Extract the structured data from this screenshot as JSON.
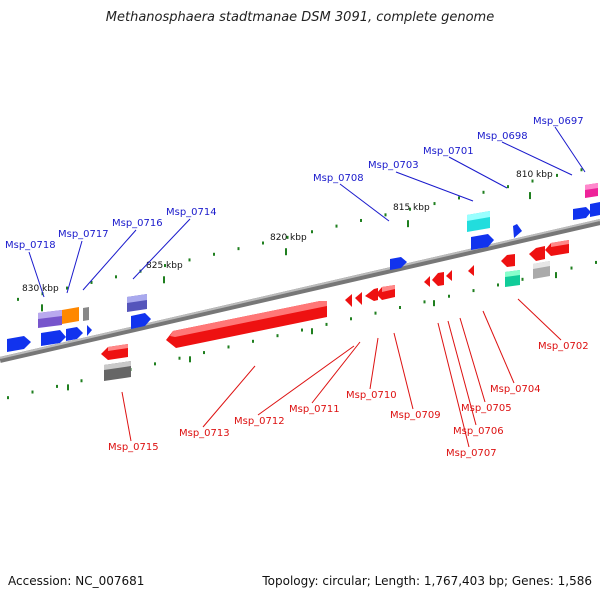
{
  "title": "Methanosphaera stadtmanae DSM 3091, complete genome",
  "footer": {
    "accession": "Accession: NC_007681",
    "topology": "Topology: circular; Length: 1,767,403 bp; Genes: 1,586"
  },
  "scale_labels": [
    "810 kbp",
    "815 kbp",
    "820 kbp",
    "825 kbp",
    "830 kbp"
  ],
  "colors": {
    "backbone": "#888888",
    "forward_label": "#1a1acc",
    "reverse_label": "#dd1111",
    "tick": "#1f7f1f"
  },
  "genes": [
    {
      "id": "Msp_0697",
      "strand": "forward",
      "color": "#ee2299"
    },
    {
      "id": "Msp_0698",
      "strand": "forward",
      "color": "#1133ee"
    },
    {
      "id": "Msp_0701",
      "strand": "forward",
      "color": "#1133ee"
    },
    {
      "id": "Msp_0703",
      "strand": "forward",
      "color": "#22dddd"
    },
    {
      "id": "Msp_0708",
      "strand": "forward",
      "color": "#1133ee"
    },
    {
      "id": "Msp_0714",
      "strand": "forward",
      "color": "#5555bb"
    },
    {
      "id": "Msp_0716",
      "strand": "forward",
      "color": "#888888"
    },
    {
      "id": "Msp_0717",
      "strand": "forward",
      "color": "#ff8800"
    },
    {
      "id": "Msp_0718",
      "strand": "forward",
      "color": "#7755cc"
    },
    {
      "id": "Msp_0702",
      "strand": "reverse",
      "color": "#ee1111"
    },
    {
      "id": "Msp_0704",
      "strand": "reverse",
      "color": "#ee1111"
    },
    {
      "id": "Msp_0705",
      "strand": "reverse",
      "color": "#ee1111"
    },
    {
      "id": "Msp_0706",
      "strand": "reverse",
      "color": "#ee1111"
    },
    {
      "id": "Msp_0707",
      "strand": "reverse",
      "color": "#ee1111"
    },
    {
      "id": "Msp_0709",
      "strand": "reverse",
      "color": "#ee1111"
    },
    {
      "id": "Msp_0710",
      "strand": "reverse",
      "color": "#ee1111"
    },
    {
      "id": "Msp_0711",
      "strand": "reverse",
      "color": "#ee1111"
    },
    {
      "id": "Msp_0712",
      "strand": "reverse",
      "color": "#ee1111"
    },
    {
      "id": "Msp_0713",
      "strand": "reverse",
      "color": "#ee1111"
    },
    {
      "id": "Msp_0715",
      "strand": "reverse",
      "color": "#ee1111"
    }
  ]
}
